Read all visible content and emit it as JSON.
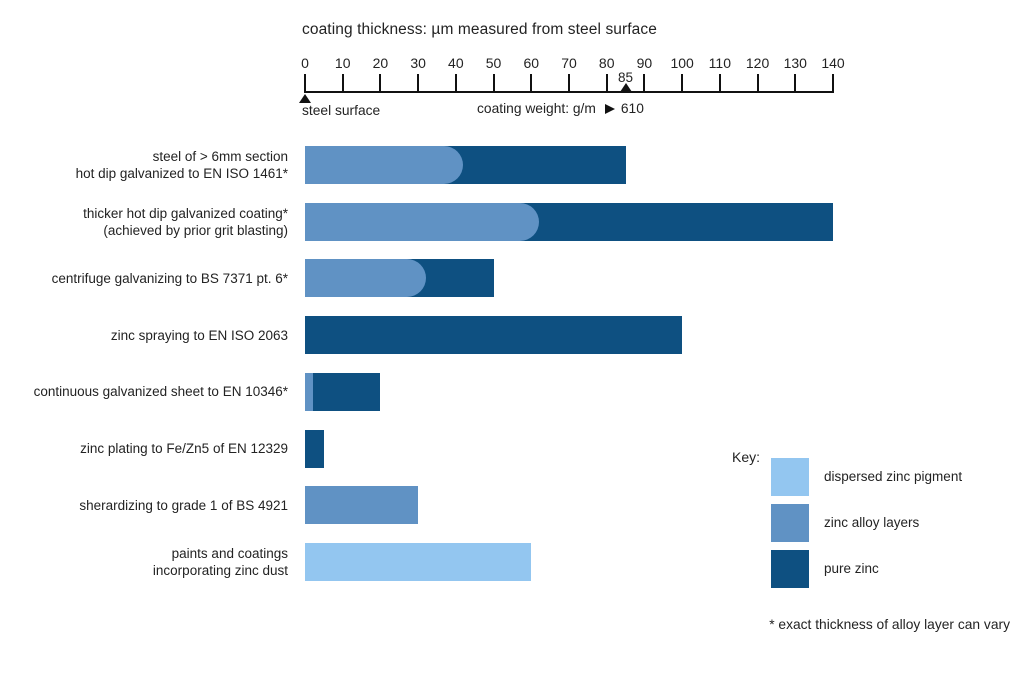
{
  "title": "coating thickness: µm measured from steel surface",
  "axis": {
    "tick_values": [
      0,
      10,
      20,
      30,
      40,
      50,
      60,
      70,
      80,
      90,
      100,
      110,
      120,
      130,
      140
    ],
    "min": 0,
    "max": 140,
    "marker": {
      "value": 85,
      "label": "85"
    },
    "origin_label": "steel surface",
    "coating_weight_text": "coating weight: g/m",
    "coating_weight_value": "610"
  },
  "colors": {
    "dispersed_zinc_pigment": "#93C6F0",
    "zinc_alloy_layers": "#6092C4",
    "pure_zinc": "#0E5081",
    "axis": "#111111",
    "text": "#232323"
  },
  "key": {
    "heading": "Key:",
    "entries": [
      {
        "id": "dispersed_zinc_pigment",
        "label": "dispersed zinc pigment",
        "color": "#93C6F0"
      },
      {
        "id": "zinc_alloy_layers",
        "label": "zinc alloy layers",
        "color": "#6092C4"
      },
      {
        "id": "pure_zinc",
        "label": "pure zinc",
        "color": "#0E5081"
      }
    ]
  },
  "footnote": "* exact thickness of alloy layer can vary",
  "chart_data": {
    "type": "bar",
    "orientation": "horizontal",
    "unit": "µm",
    "title": "coating thickness: µm measured from steel surface",
    "xlim": [
      0,
      140
    ],
    "x_ticks": [
      0,
      10,
      20,
      30,
      40,
      50,
      60,
      70,
      80,
      90,
      100,
      110,
      120,
      130,
      140
    ],
    "axis_annotations": [
      {
        "x": 0,
        "label": "steel surface"
      },
      {
        "x": 85,
        "label": "85"
      }
    ],
    "secondary_axis_note": {
      "text": "coating weight: g/m",
      "value": "610"
    },
    "legend": [
      "dispersed zinc pigment",
      "zinc alloy layers",
      "pure zinc"
    ],
    "legend_position": "bottom-right",
    "rows": [
      {
        "label_lines": [
          "steel of > 6mm section",
          "hot dip galvanized to EN ISO 1461*"
        ],
        "segments": [
          {
            "layer": "zinc_alloy_layers",
            "from": 0,
            "to": 42,
            "rounded_end": true
          },
          {
            "layer": "pure_zinc",
            "from": 42,
            "to": 85
          }
        ]
      },
      {
        "label_lines": [
          "thicker hot dip galvanized coating*",
          "(achieved by prior grit blasting)"
        ],
        "segments": [
          {
            "layer": "zinc_alloy_layers",
            "from": 0,
            "to": 62,
            "rounded_end": true
          },
          {
            "layer": "pure_zinc",
            "from": 62,
            "to": 140
          }
        ]
      },
      {
        "label_lines": [
          "centrifuge galvanizing to BS 7371 pt. 6*"
        ],
        "segments": [
          {
            "layer": "zinc_alloy_layers",
            "from": 0,
            "to": 32,
            "rounded_end": true
          },
          {
            "layer": "pure_zinc",
            "from": 32,
            "to": 50
          }
        ]
      },
      {
        "label_lines": [
          "zinc spraying to EN ISO 2063"
        ],
        "segments": [
          {
            "layer": "pure_zinc",
            "from": 0,
            "to": 100
          }
        ]
      },
      {
        "label_lines": [
          "continuous galvanized sheet to EN 10346*"
        ],
        "segments": [
          {
            "layer": "zinc_alloy_layers",
            "from": 0,
            "to": 2
          },
          {
            "layer": "pure_zinc",
            "from": 2,
            "to": 20
          }
        ]
      },
      {
        "label_lines": [
          "zinc plating to Fe/Zn5 of EN 12329"
        ],
        "segments": [
          {
            "layer": "pure_zinc",
            "from": 0,
            "to": 5
          }
        ]
      },
      {
        "label_lines": [
          "sherardizing to grade 1 of BS 4921"
        ],
        "segments": [
          {
            "layer": "zinc_alloy_layers",
            "from": 0,
            "to": 30
          }
        ]
      },
      {
        "label_lines": [
          "paints and coatings",
          "incorporating zinc dust"
        ],
        "segments": [
          {
            "layer": "dispersed_zinc_pigment",
            "from": 0,
            "to": 60
          }
        ]
      }
    ]
  }
}
